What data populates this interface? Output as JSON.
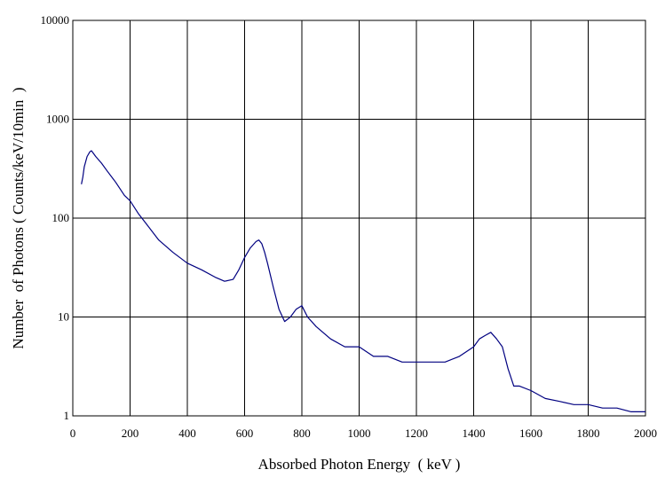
{
  "chart_data": {
    "type": "line",
    "title": "",
    "xlabel": "Absorbed Photon Energy  ( keV )",
    "ylabel": "Number  of Photons ( Counts/keV/10min  )",
    "x_scale": "linear",
    "y_scale": "log",
    "xlim": [
      0,
      2000
    ],
    "ylim": [
      1,
      10000
    ],
    "x_ticks": [
      0,
      200,
      400,
      600,
      800,
      1000,
      1200,
      1400,
      1600,
      1800,
      2000
    ],
    "y_ticks": [
      1,
      10,
      100,
      1000,
      10000
    ],
    "x_tick_labels": [
      "0",
      "200",
      "400",
      "600",
      "800",
      "1000",
      "1200",
      "1400",
      "1600",
      "1800",
      "2000"
    ],
    "y_tick_labels": [
      "1",
      "10",
      "100",
      "1000",
      "10000"
    ],
    "grid": true,
    "legend": "none",
    "series": [
      {
        "color": "#000080",
        "x": [
          30,
          35,
          40,
          50,
          60,
          65,
          70,
          80,
          100,
          120,
          150,
          180,
          200,
          230,
          260,
          300,
          350,
          400,
          450,
          500,
          530,
          560,
          580,
          600,
          620,
          640,
          650,
          660,
          670,
          680,
          700,
          720,
          740,
          760,
          780,
          800,
          820,
          850,
          900,
          950,
          1000,
          1050,
          1100,
          1150,
          1200,
          1250,
          1300,
          1350,
          1400,
          1420,
          1440,
          1460,
          1480,
          1500,
          1520,
          1540,
          1560,
          1600,
          1650,
          1700,
          1750,
          1800,
          1850,
          1900,
          1950,
          2000
        ],
        "values": [
          220,
          260,
          330,
          420,
          470,
          480,
          460,
          420,
          360,
          300,
          230,
          170,
          150,
          110,
          85,
          60,
          45,
          35,
          30,
          25,
          23,
          24,
          30,
          40,
          50,
          58,
          60,
          55,
          45,
          35,
          20,
          12,
          9,
          10,
          12,
          13,
          10,
          8,
          6,
          5,
          5,
          4,
          4,
          3.5,
          3.5,
          3.5,
          3.5,
          4,
          5,
          6,
          6.5,
          7,
          6,
          5,
          3,
          2,
          2,
          1.8,
          1.5,
          1.4,
          1.3,
          1.3,
          1.2,
          1.2,
          1.1,
          1.1
        ]
      }
    ]
  }
}
